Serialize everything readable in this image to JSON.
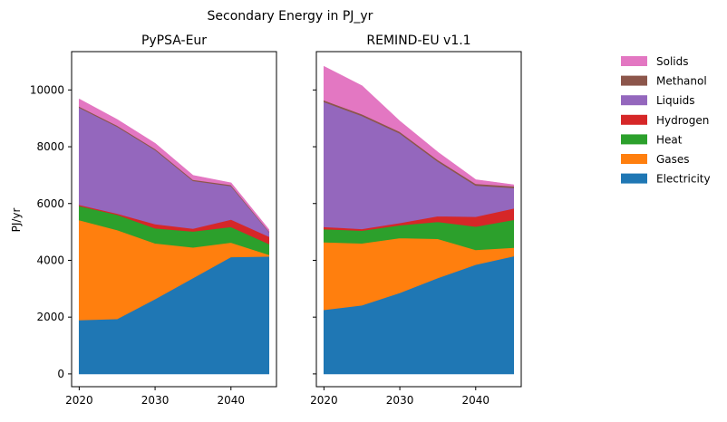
{
  "figure": {
    "suptitle": "Secondary Energy in PJ_yr",
    "ylabel": "PJ/yr"
  },
  "legend": {
    "placement": "right",
    "entries": [
      {
        "label": "Solids",
        "color": "#e377c2"
      },
      {
        "label": "Methanol",
        "color": "#8c564b"
      },
      {
        "label": "Liquids",
        "color": "#9467bd"
      },
      {
        "label": "Hydrogen",
        "color": "#d62728"
      },
      {
        "label": "Heat",
        "color": "#2ca02c"
      },
      {
        "label": "Gases",
        "color": "#ff7f0e"
      },
      {
        "label": "Electricity",
        "color": "#1f77b4"
      }
    ]
  },
  "chart_data": [
    {
      "type": "area",
      "stacked": true,
      "title": "PyPSA-Eur",
      "ylabel": "PJ/yr",
      "x": [
        2020,
        2025,
        2030,
        2035,
        2040,
        2045
      ],
      "xticks": [
        2020,
        2030,
        2040
      ],
      "xlim": [
        2019,
        2046
      ],
      "yticks": [
        0,
        2000,
        4000,
        6000,
        8000,
        10000
      ],
      "ylim": [
        -450,
        11350
      ],
      "grid": false,
      "series": [
        {
          "name": "Electricity",
          "color": "#1f77b4",
          "values": [
            1900,
            1940,
            2640,
            3380,
            4120,
            4140
          ]
        },
        {
          "name": "Gases",
          "color": "#ff7f0e",
          "values": [
            3520,
            3130,
            1960,
            1080,
            510,
            60
          ]
        },
        {
          "name": "Heat",
          "color": "#2ca02c",
          "values": [
            500,
            540,
            530,
            560,
            550,
            380
          ]
        },
        {
          "name": "Hydrogen",
          "color": "#d62728",
          "values": [
            40,
            40,
            150,
            100,
            260,
            260
          ]
        },
        {
          "name": "Liquids",
          "color": "#9467bd",
          "values": [
            3420,
            3060,
            2610,
            1680,
            1180,
            170
          ]
        },
        {
          "name": "Methanol",
          "color": "#8c564b",
          "values": [
            40,
            40,
            40,
            40,
            40,
            20
          ]
        },
        {
          "name": "Solids",
          "color": "#e377c2",
          "values": [
            250,
            200,
            180,
            140,
            60,
            40
          ]
        }
      ]
    },
    {
      "type": "area",
      "stacked": true,
      "title": "REMIND-EU v1.1",
      "ylabel": "",
      "x": [
        2020,
        2025,
        2030,
        2035,
        2040,
        2045
      ],
      "xticks": [
        2020,
        2030,
        2040
      ],
      "xlim": [
        2019,
        2046
      ],
      "yticks": [
        0,
        2000,
        4000,
        6000,
        8000,
        10000
      ],
      "ylim": [
        -450,
        11350
      ],
      "grid": false,
      "series": [
        {
          "name": "Electricity",
          "color": "#1f77b4",
          "values": [
            2260,
            2420,
            2860,
            3380,
            3850,
            4150
          ]
        },
        {
          "name": "Gases",
          "color": "#ff7f0e",
          "values": [
            2380,
            2180,
            1930,
            1380,
            520,
            300
          ]
        },
        {
          "name": "Heat",
          "color": "#2ca02c",
          "values": [
            460,
            450,
            450,
            600,
            820,
            980
          ]
        },
        {
          "name": "Hydrogen",
          "color": "#d62728",
          "values": [
            80,
            60,
            80,
            200,
            350,
            400
          ]
        },
        {
          "name": "Liquids",
          "color": "#9467bd",
          "values": [
            4400,
            3980,
            3150,
            1920,
            1100,
            720
          ]
        },
        {
          "name": "Methanol",
          "color": "#8c564b",
          "values": [
            60,
            60,
            60,
            60,
            60,
            60
          ]
        },
        {
          "name": "Solids",
          "color": "#e377c2",
          "values": [
            1180,
            990,
            360,
            260,
            130,
            40
          ]
        }
      ]
    }
  ]
}
